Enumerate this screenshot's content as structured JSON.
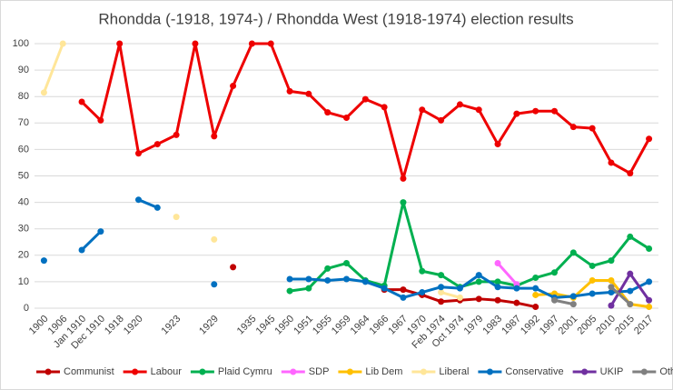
{
  "chart_data": {
    "type": "line",
    "title": "Rhondda (-1918, 1974-) / Rhondda West (1918-1974) election results",
    "categories": [
      "1900",
      "1906",
      "Jan 1910",
      "Dec 1910",
      "1918",
      "1920",
      null,
      "1923",
      null,
      "1929",
      null,
      "1935",
      "1945",
      "1950",
      "1951",
      "1955",
      "1959",
      "1964",
      "1966",
      "1967",
      "1970",
      "Feb 1974",
      "Oct 1974",
      "1979",
      "1983",
      "1987",
      "1992",
      "1997",
      "2001",
      "2005",
      "2010",
      "2015",
      "2017"
    ],
    "ylim": [
      0,
      100
    ],
    "yticks": [
      0,
      10,
      20,
      30,
      40,
      50,
      60,
      70,
      80,
      90,
      100
    ],
    "grid": true,
    "legend": "bottom",
    "series": [
      {
        "name": "Communist",
        "color": "#c00000",
        "values": [
          null,
          null,
          null,
          null,
          null,
          null,
          null,
          null,
          null,
          null,
          15.5,
          null,
          null,
          null,
          null,
          null,
          null,
          null,
          7,
          7,
          5,
          2.5,
          3,
          3.5,
          3,
          2,
          0.5,
          null,
          null,
          null,
          null,
          null,
          null
        ]
      },
      {
        "name": "Labour",
        "color": "#ee0000",
        "values": [
          null,
          null,
          78,
          71,
          100,
          58.5,
          62,
          65.5,
          100,
          65,
          84,
          100,
          100,
          82,
          81,
          74,
          72,
          79,
          76,
          49,
          75,
          71,
          77,
          75,
          62,
          73.5,
          74.5,
          74.5,
          68.5,
          68,
          55,
          51,
          64
        ]
      },
      {
        "name": "Plaid Cymru",
        "color": "#00b050",
        "values": [
          null,
          null,
          null,
          null,
          null,
          null,
          null,
          null,
          null,
          null,
          null,
          null,
          null,
          6.5,
          7.5,
          15,
          17,
          10.5,
          8.5,
          40,
          14,
          12.5,
          8,
          10,
          10,
          8.5,
          11.5,
          13.5,
          21,
          16,
          18,
          27,
          22.5
        ]
      },
      {
        "name": "SDP",
        "color": "#ff66ff",
        "values": [
          null,
          null,
          null,
          null,
          null,
          null,
          null,
          null,
          null,
          null,
          null,
          null,
          null,
          null,
          null,
          null,
          null,
          null,
          null,
          null,
          null,
          null,
          null,
          null,
          17,
          9,
          null,
          null,
          null,
          null,
          null,
          null,
          null
        ]
      },
      {
        "name": "Lib Dem",
        "color": "#ffc000",
        "values": [
          null,
          null,
          null,
          null,
          null,
          null,
          null,
          null,
          null,
          null,
          null,
          null,
          null,
          null,
          null,
          null,
          null,
          null,
          null,
          null,
          null,
          null,
          null,
          null,
          null,
          null,
          5,
          5.5,
          4,
          10.5,
          10.5,
          1.5,
          0.5
        ]
      },
      {
        "name": "Liberal",
        "color": "#ffe699",
        "values": [
          81.5,
          100,
          null,
          null,
          null,
          null,
          null,
          34.5,
          null,
          26,
          null,
          null,
          null,
          null,
          null,
          null,
          null,
          null,
          null,
          null,
          null,
          6,
          4,
          null,
          null,
          null,
          null,
          null,
          null,
          null,
          null,
          null,
          null
        ]
      },
      {
        "name": "Conservative",
        "color": "#0070c0",
        "values": [
          18,
          null,
          22,
          29,
          null,
          41,
          38,
          null,
          null,
          9,
          null,
          null,
          null,
          11,
          11,
          10.5,
          11,
          10,
          7.5,
          4,
          6,
          8,
          7.5,
          12.5,
          8,
          7.5,
          7.5,
          4,
          4.5,
          5.5,
          6,
          6.5,
          10
        ]
      },
      {
        "name": "UKIP",
        "color": "#7030a0",
        "values": [
          null,
          null,
          null,
          null,
          null,
          null,
          null,
          null,
          null,
          null,
          null,
          null,
          null,
          null,
          null,
          null,
          null,
          null,
          null,
          null,
          null,
          null,
          null,
          null,
          null,
          null,
          null,
          null,
          null,
          null,
          1,
          13,
          3
        ]
      },
      {
        "name": "Others",
        "color": "#808080",
        "values": [
          null,
          null,
          null,
          null,
          null,
          null,
          null,
          null,
          null,
          null,
          null,
          null,
          null,
          null,
          null,
          null,
          null,
          null,
          null,
          null,
          null,
          null,
          null,
          null,
          null,
          null,
          null,
          3,
          1.5,
          null,
          8,
          1.5,
          null
        ]
      }
    ]
  }
}
